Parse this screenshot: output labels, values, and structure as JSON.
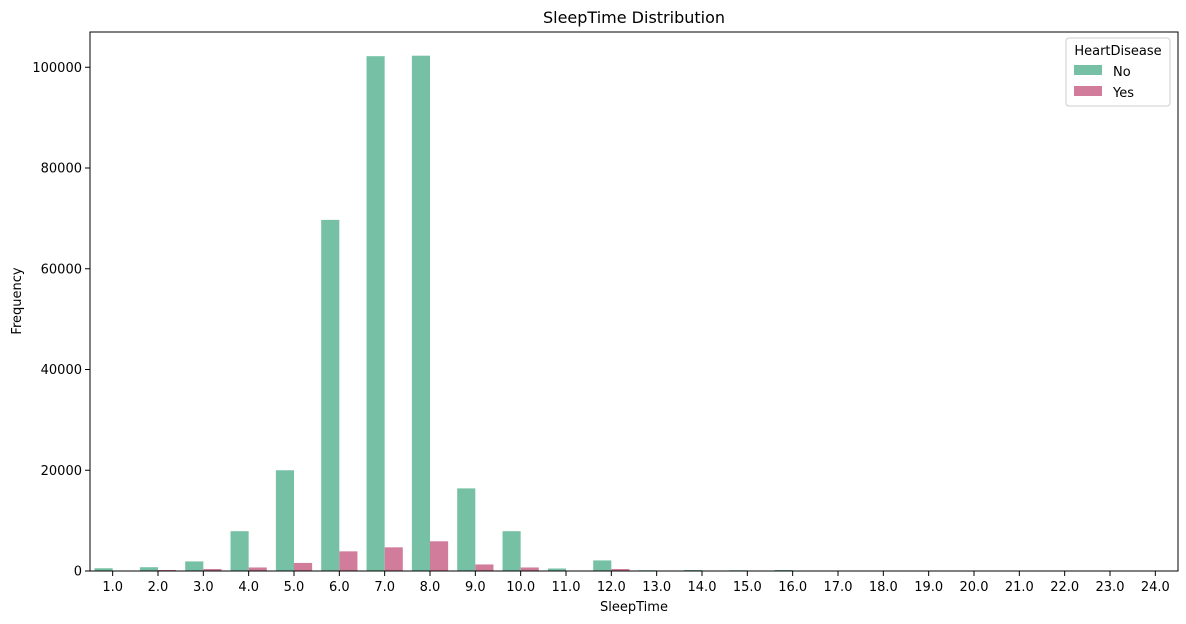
{
  "chart_data": {
    "type": "bar",
    "title": "SleepTime Distribution",
    "xlabel": "SleepTime",
    "ylabel": "Frequency",
    "ylim": [
      0,
      107000
    ],
    "yticks": [
      "0",
      "20000",
      "40000",
      "60000",
      "80000",
      "100000"
    ],
    "categories": [
      "1.0",
      "2.0",
      "3.0",
      "4.0",
      "5.0",
      "6.0",
      "7.0",
      "8.0",
      "9.0",
      "10.0",
      "11.0",
      "12.0",
      "13.0",
      "14.0",
      "15.0",
      "16.0",
      "17.0",
      "18.0",
      "19.0",
      "20.0",
      "21.0",
      "22.0",
      "23.0",
      "24.0"
    ],
    "legend": {
      "title": "HeartDisease",
      "position": "top-right"
    },
    "series": [
      {
        "name": "No",
        "color": "#76c1a5",
        "values": [
          550,
          750,
          1900,
          7900,
          20000,
          69700,
          102200,
          102300,
          16400,
          7900,
          500,
          2100,
          150,
          200,
          150,
          200,
          20,
          100,
          20,
          100,
          20,
          20,
          20,
          20
        ]
      },
      {
        "name": "Yes",
        "color": "#d17c9a",
        "values": [
          100,
          200,
          400,
          700,
          1600,
          3900,
          4700,
          5900,
          1300,
          700,
          100,
          400,
          20,
          20,
          20,
          20,
          5,
          10,
          5,
          10,
          5,
          5,
          5,
          5
        ]
      }
    ],
    "grid": false
  }
}
